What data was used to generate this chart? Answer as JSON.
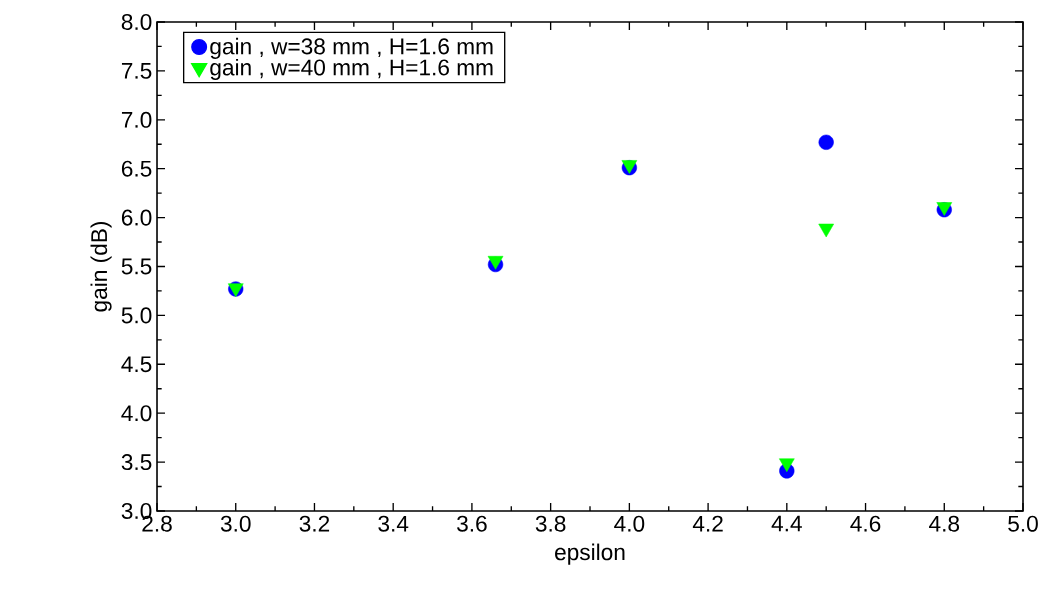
{
  "chart_data": {
    "type": "scatter",
    "xlabel": "epsilon",
    "ylabel": "gain (dB)",
    "x": [
      3.0,
      3.66,
      4.0,
      4.4,
      4.5,
      4.8
    ],
    "series": [
      {
        "name": "gain , w=38 mm , H=1.6 mm",
        "color": "#0000ff",
        "marker": "circle",
        "values": [
          5.27,
          5.52,
          6.51,
          3.41,
          6.77,
          6.08
        ]
      },
      {
        "name": "gain , w=40 mm , H=1.6 mm",
        "color": "#00ff00",
        "marker": "triangle",
        "values": [
          5.28,
          5.56,
          6.54,
          3.49,
          5.89,
          6.11
        ]
      }
    ],
    "xlim": [
      2.8,
      5.0
    ],
    "ylim": [
      3.0,
      8.0
    ],
    "xticks": [
      {
        "value": 2.8,
        "label": "2.8"
      },
      {
        "value": 3.0,
        "label": "3.0"
      },
      {
        "value": 3.2,
        "label": "3.2"
      },
      {
        "value": 3.4,
        "label": "3.4"
      },
      {
        "value": 3.6,
        "label": "3.6"
      },
      {
        "value": 3.8,
        "label": "3.8"
      },
      {
        "value": 4.0,
        "label": "4.0"
      },
      {
        "value": 4.2,
        "label": "4.2"
      },
      {
        "value": 4.4,
        "label": "4.4"
      },
      {
        "value": 4.6,
        "label": "4.6"
      },
      {
        "value": 4.8,
        "label": "4.8"
      },
      {
        "value": 5.0,
        "label": "5.0"
      }
    ],
    "yticks": [
      {
        "value": 3.0,
        "label": "3.0"
      },
      {
        "value": 3.5,
        "label": "3.5"
      },
      {
        "value": 4.0,
        "label": "4.0"
      },
      {
        "value": 4.5,
        "label": "4.5"
      },
      {
        "value": 5.0,
        "label": "5.0"
      },
      {
        "value": 5.5,
        "label": "5.5"
      },
      {
        "value": 6.0,
        "label": "6.0"
      },
      {
        "value": 6.5,
        "label": "6.5"
      },
      {
        "value": 7.0,
        "label": "7.0"
      },
      {
        "value": 7.5,
        "label": "7.5"
      },
      {
        "value": 8.0,
        "label": "8.0"
      }
    ],
    "grid": false,
    "legend": "top left"
  }
}
